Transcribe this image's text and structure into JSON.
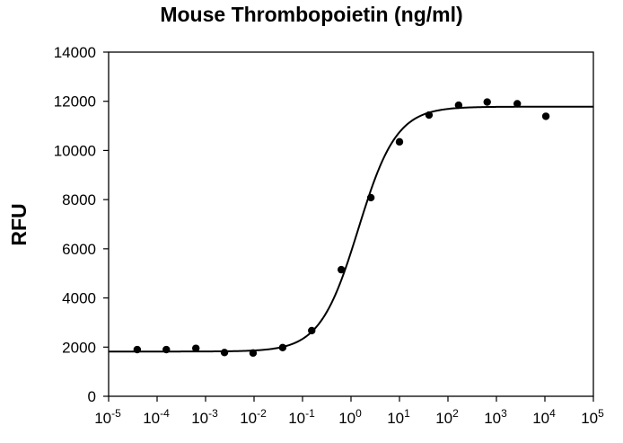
{
  "chart_data": {
    "type": "scatter",
    "title": "Mouse Thrombopoietin (ng/ml)",
    "xlabel": "",
    "ylabel": "RFU",
    "xscale": "log",
    "xlim_log10": [
      -5,
      5
    ],
    "ylim": [
      0,
      14000
    ],
    "x_tick_exponents": [
      "-5",
      "-4",
      "-3",
      "-2",
      "-1",
      "0",
      "1",
      "2",
      "3",
      "4",
      "5"
    ],
    "x_tick_base": "10",
    "y_ticks": [
      "0",
      "2000",
      "4000",
      "6000",
      "8000",
      "10000",
      "12000",
      "14000"
    ],
    "grid": false,
    "legend": "none",
    "series": [
      {
        "name": "data points",
        "log10_x": [
          -4.41,
          -3.81,
          -3.2,
          -2.61,
          -2.02,
          -1.41,
          -0.81,
          -0.2,
          0.41,
          1.0,
          1.61,
          2.22,
          2.81,
          3.43,
          4.02
        ],
        "y": [
          1900,
          1900,
          1950,
          1780,
          1760,
          1980,
          2670,
          5150,
          8080,
          10350,
          11440,
          11840,
          11970,
          11900,
          11390
        ]
      }
    ],
    "fit_curve": {
      "model": "4-parameter logistic",
      "bottom": 1820,
      "top": 11780,
      "log10_ec50": 0.15,
      "hill_slope": 1.1
    },
    "colors": {
      "marks": "#000000",
      "axes": "#000000",
      "background": "#ffffff"
    }
  }
}
